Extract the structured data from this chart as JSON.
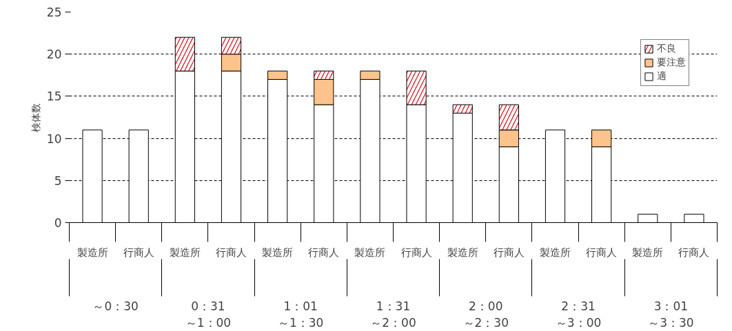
{
  "chart_data": {
    "type": "bar",
    "stacked": true,
    "ylabel": "検体数",
    "categories": [
      "製造所",
      "行商人",
      "製造所",
      "行商人",
      "製造所",
      "行商人",
      "製造所",
      "行商人",
      "製造所",
      "行商人",
      "製造所",
      "行商人",
      "製造所",
      "行商人"
    ],
    "series": [
      {
        "name": "適",
        "color": "#ffffff",
        "values": [
          11,
          11,
          18,
          18,
          17,
          14,
          17,
          14,
          13,
          9,
          11,
          9,
          1,
          1
        ]
      },
      {
        "name": "要注意",
        "color": "#fcc48c",
        "values": [
          null,
          null,
          null,
          2,
          1,
          3,
          1,
          null,
          null,
          2,
          null,
          2,
          null,
          null
        ]
      },
      {
        "name": "不良",
        "color": "#e0202a",
        "values": [
          null,
          null,
          4,
          2,
          null,
          1,
          null,
          4,
          1,
          3,
          null,
          null,
          null,
          null
        ]
      }
    ],
    "annotations": [
      "～0：30",
      "0：31\n～1：00",
      "1：01\n～1：30",
      "1：31\n～2：00",
      "2：00\n～2：30",
      "2：31\n～3：00",
      "3：01\n～3：30"
    ],
    "ylim": [
      0,
      25
    ],
    "yticks": [
      0,
      5,
      10,
      15,
      20,
      25
    ],
    "grid": "y",
    "legend": "top right"
  }
}
